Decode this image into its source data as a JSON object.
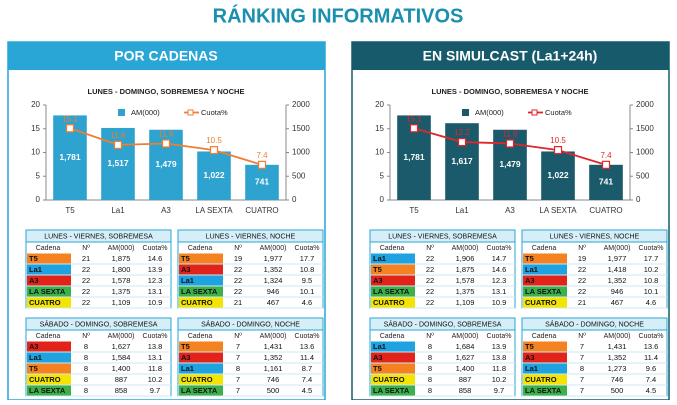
{
  "title": "RÁNKING INFORMATIVOS",
  "panels": [
    {
      "heading": "POR CADENAS",
      "color": "#29a6d6",
      "tables": [
        {
          "title": "LUNES - VIERNES, SOBREMESA",
          "rows": [
            [
              "T5",
              "21",
              "1,875",
              "14.6"
            ],
            [
              "La1",
              "22",
              "1,800",
              "13.9"
            ],
            [
              "A3",
              "22",
              "1,578",
              "12.3"
            ],
            [
              "LA SEXTA",
              "22",
              "1,375",
              "13.1"
            ],
            [
              "CUATRO",
              "22",
              "1,109",
              "10.9"
            ]
          ]
        },
        {
          "title": "LUNES - VIERNES, NOCHE",
          "rows": [
            [
              "T5",
              "19",
              "1,977",
              "17.7"
            ],
            [
              "A3",
              "22",
              "1,352",
              "10.8"
            ],
            [
              "La1",
              "22",
              "1,324",
              "9.5"
            ],
            [
              "LA SEXTA",
              "22",
              "946",
              "10.1"
            ],
            [
              "CUATRO",
              "21",
              "467",
              "4.6"
            ]
          ]
        },
        {
          "title": "SÁBADO - DOMINGO, SOBREMESA",
          "rows": [
            [
              "A3",
              "8",
              "1,627",
              "13.8"
            ],
            [
              "La1",
              "8",
              "1,584",
              "13.1"
            ],
            [
              "T5",
              "8",
              "1,400",
              "11.8"
            ],
            [
              "CUATRO",
              "8",
              "887",
              "10.2"
            ],
            [
              "LA SEXTA",
              "8",
              "858",
              "9.7"
            ]
          ]
        },
        {
          "title": "SÁBADO - DOMINGO, NOCHE",
          "rows": [
            [
              "T5",
              "7",
              "1,431",
              "13.6"
            ],
            [
              "A3",
              "7",
              "1,352",
              "11.4"
            ],
            [
              "La1",
              "8",
              "1,161",
              "8.7"
            ],
            [
              "CUATRO",
              "7",
              "746",
              "7.4"
            ],
            [
              "LA SEXTA",
              "7",
              "500",
              "4.5"
            ]
          ]
        }
      ]
    },
    {
      "heading": "EN SIMULCAST (La1+24h)",
      "color": "#175a6b",
      "tables": [
        {
          "title": "LUNES - VIERNES, SOBREMESA",
          "rows": [
            [
              "La1",
              "22",
              "1,906",
              "14.7"
            ],
            [
              "T5",
              "22",
              "1,875",
              "14.6"
            ],
            [
              "A3",
              "22",
              "1,578",
              "12.3"
            ],
            [
              "LA SEXTA",
              "22",
              "1,375",
              "13.1"
            ],
            [
              "CUATRO",
              "22",
              "1,109",
              "10.9"
            ]
          ]
        },
        {
          "title": "LUNES - VIERNES, NOCHE",
          "rows": [
            [
              "T5",
              "19",
              "1,977",
              "17.7"
            ],
            [
              "La1",
              "22",
              "1,418",
              "10.2"
            ],
            [
              "A3",
              "22",
              "1,352",
              "10.8"
            ],
            [
              "LA SEXTA",
              "22",
              "946",
              "10.1"
            ],
            [
              "CUATRO",
              "21",
              "467",
              "4.6"
            ]
          ]
        },
        {
          "title": "SÁBADO - DOMINGO, SOBREMESA",
          "rows": [
            [
              "La1",
              "8",
              "1,684",
              "13.9"
            ],
            [
              "A3",
              "8",
              "1,627",
              "13.8"
            ],
            [
              "T5",
              "8",
              "1,400",
              "11.8"
            ],
            [
              "CUATRO",
              "8",
              "887",
              "10.2"
            ],
            [
              "LA SEXTA",
              "8",
              "858",
              "9.7"
            ]
          ]
        },
        {
          "title": "SÁBADO - DOMINGO, NOCHE",
          "rows": [
            [
              "T5",
              "7",
              "1,431",
              "13.6"
            ],
            [
              "A3",
              "7",
              "1,352",
              "11.4"
            ],
            [
              "La1",
              "8",
              "1,273",
              "9.6"
            ],
            [
              "CUATRO",
              "7",
              "746",
              "7.4"
            ],
            [
              "LA SEXTA",
              "7",
              "500",
              "4.5"
            ]
          ]
        }
      ]
    }
  ],
  "table_columns": [
    "Cadena",
    "Nº",
    "AM(000)",
    "Cuota%"
  ],
  "channel_colors": {
    "T5": "#f58220",
    "La1": "#1fa3e0",
    "A3": "#e2231a",
    "LA SEXTA": "#3cb04a",
    "CUATRO": "#f5e400"
  },
  "chart_data": [
    {
      "type": "bar",
      "title": "LUNES - DOMINGO, SOBREMESA  Y NOCHE",
      "categories": [
        "T5",
        "La1",
        "A3",
        "LA SEXTA",
        "CUATRO"
      ],
      "series": [
        {
          "name": "AM(000)",
          "type": "bar",
          "axis": "y2",
          "color": "#2ea3d0",
          "values": [
            1781,
            1517,
            1479,
            1022,
            741
          ],
          "value_labels": [
            "1,781",
            "1,517",
            "1,479",
            "1,022",
            "741"
          ]
        },
        {
          "name": "Cuota%",
          "type": "line",
          "color": "#f07d30",
          "values": [
            15.1,
            11.6,
            11.9,
            10.5,
            7.4
          ]
        }
      ],
      "ylim": [
        0,
        20
      ],
      "yticks": [
        0,
        5,
        10,
        15,
        20
      ],
      "y2lim": [
        0,
        2000
      ],
      "y2ticks": [
        0,
        500,
        1000,
        1500,
        2000
      ]
    },
    {
      "type": "bar",
      "title": "LUNES - DOMINGO, SOBREMESA  Y NOCHE",
      "categories": [
        "T5",
        "La1",
        "A3",
        "LA SEXTA",
        "CUATRO"
      ],
      "series": [
        {
          "name": "AM(000)",
          "type": "bar",
          "axis": "y2",
          "color": "#1a5a6b",
          "values": [
            1781,
            1617,
            1479,
            1022,
            741
          ],
          "value_labels": [
            "1,781",
            "1,617",
            "1,479",
            "1,022",
            "741"
          ]
        },
        {
          "name": "Cuota%",
          "type": "line",
          "color": "#e0262b",
          "values": [
            15.1,
            12.2,
            11.9,
            10.5,
            7.4
          ]
        }
      ],
      "ylim": [
        0,
        20
      ],
      "yticks": [
        0,
        5,
        10,
        15,
        20
      ],
      "y2lim": [
        0,
        2000
      ],
      "y2ticks": [
        0,
        500,
        1000,
        1500,
        2000
      ]
    }
  ]
}
